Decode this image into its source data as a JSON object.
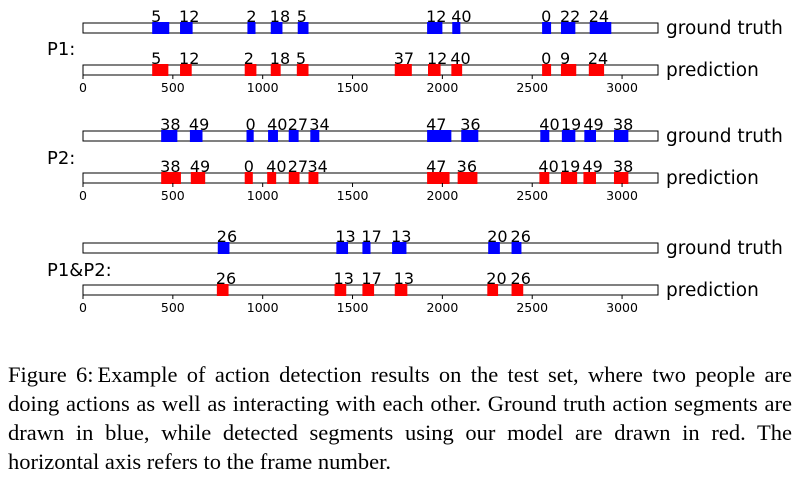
{
  "figure": {
    "caption_label": "Figure 6:",
    "caption_text": "Example of action detection results on the test set, where two people are doing actions as well as interacting with each other. Ground truth action segments are drawn in blue, while detected segments using our model are drawn in red. The horizontal axis refers to the frame number."
  },
  "colors": {
    "ground_truth": "#0000ff",
    "prediction": "#ff0000",
    "track": "#ffffff",
    "border": "#000000"
  },
  "chart_data": [
    {
      "type": "timeline",
      "title": "P1:",
      "xlim": [
        0,
        3200
      ],
      "xticks": [
        0,
        500,
        1000,
        1500,
        2000,
        2500,
        3000
      ],
      "tracks": [
        {
          "name": "ground truth",
          "color": "#0000ff",
          "segments": [
            {
              "start": 385,
              "end": 480,
              "label": "5"
            },
            {
              "start": 540,
              "end": 610,
              "label": "12"
            },
            {
              "start": 915,
              "end": 960,
              "label": "2"
            },
            {
              "start": 1045,
              "end": 1110,
              "label": "18"
            },
            {
              "start": 1195,
              "end": 1255,
              "label": "5"
            },
            {
              "start": 1915,
              "end": 2000,
              "label": "12"
            },
            {
              "start": 2055,
              "end": 2100,
              "label": "40"
            },
            {
              "start": 2555,
              "end": 2605,
              "label": "0"
            },
            {
              "start": 2660,
              "end": 2740,
              "label": "22"
            },
            {
              "start": 2820,
              "end": 2940,
              "label": "24"
            }
          ]
        },
        {
          "name": "prediction",
          "color": "#ff0000",
          "segments": [
            {
              "start": 385,
              "end": 475,
              "label": "5"
            },
            {
              "start": 540,
              "end": 605,
              "label": "12"
            },
            {
              "start": 900,
              "end": 965,
              "label": "2"
            },
            {
              "start": 1045,
              "end": 1100,
              "label": "18"
            },
            {
              "start": 1190,
              "end": 1255,
              "label": "5"
            },
            {
              "start": 1735,
              "end": 1830,
              "label": "37"
            },
            {
              "start": 1920,
              "end": 1990,
              "label": "12"
            },
            {
              "start": 2050,
              "end": 2110,
              "label": "40"
            },
            {
              "start": 2555,
              "end": 2605,
              "label": "0"
            },
            {
              "start": 2660,
              "end": 2745,
              "label": "9"
            },
            {
              "start": 2815,
              "end": 2900,
              "label": "24"
            }
          ]
        }
      ]
    },
    {
      "type": "timeline",
      "title": "P2:",
      "xlim": [
        0,
        3200
      ],
      "xticks": [
        0,
        500,
        1000,
        1500,
        2000,
        2500,
        3000
      ],
      "tracks": [
        {
          "name": "ground truth",
          "color": "#0000ff",
          "segments": [
            {
              "start": 435,
              "end": 525,
              "label": "38"
            },
            {
              "start": 595,
              "end": 665,
              "label": "49"
            },
            {
              "start": 910,
              "end": 950,
              "label": "0"
            },
            {
              "start": 1030,
              "end": 1085,
              "label": "40"
            },
            {
              "start": 1145,
              "end": 1200,
              "label": "27"
            },
            {
              "start": 1265,
              "end": 1315,
              "label": "34"
            },
            {
              "start": 1915,
              "end": 2050,
              "label": "47"
            },
            {
              "start": 2105,
              "end": 2200,
              "label": "36"
            },
            {
              "start": 2545,
              "end": 2595,
              "label": "40"
            },
            {
              "start": 2665,
              "end": 2740,
              "label": "19"
            },
            {
              "start": 2790,
              "end": 2855,
              "label": "49"
            },
            {
              "start": 2955,
              "end": 3035,
              "label": "38"
            }
          ]
        },
        {
          "name": "prediction",
          "color": "#ff0000",
          "segments": [
            {
              "start": 435,
              "end": 545,
              "label": "38"
            },
            {
              "start": 600,
              "end": 680,
              "label": "49"
            },
            {
              "start": 900,
              "end": 945,
              "label": "0"
            },
            {
              "start": 1025,
              "end": 1075,
              "label": "40"
            },
            {
              "start": 1145,
              "end": 1205,
              "label": "27"
            },
            {
              "start": 1255,
              "end": 1310,
              "label": "34"
            },
            {
              "start": 1915,
              "end": 2040,
              "label": "47"
            },
            {
              "start": 2085,
              "end": 2195,
              "label": "36"
            },
            {
              "start": 2540,
              "end": 2595,
              "label": "40"
            },
            {
              "start": 2660,
              "end": 2750,
              "label": "19"
            },
            {
              "start": 2785,
              "end": 2855,
              "label": "49"
            },
            {
              "start": 2955,
              "end": 3035,
              "label": "38"
            }
          ]
        }
      ]
    },
    {
      "type": "timeline",
      "title": "P1&P2:",
      "xlim": [
        0,
        3200
      ],
      "xticks": [
        0,
        500,
        1000,
        1500,
        2000,
        2500,
        3000
      ],
      "tracks": [
        {
          "name": "ground truth",
          "color": "#0000ff",
          "segments": [
            {
              "start": 750,
              "end": 815,
              "label": "26"
            },
            {
              "start": 1410,
              "end": 1475,
              "label": "13"
            },
            {
              "start": 1555,
              "end": 1600,
              "label": "17"
            },
            {
              "start": 1720,
              "end": 1800,
              "label": "13"
            },
            {
              "start": 2255,
              "end": 2320,
              "label": "20"
            },
            {
              "start": 2385,
              "end": 2440,
              "label": "26"
            }
          ]
        },
        {
          "name": "prediction",
          "color": "#ff0000",
          "segments": [
            {
              "start": 745,
              "end": 810,
              "label": "26"
            },
            {
              "start": 1400,
              "end": 1465,
              "label": "13"
            },
            {
              "start": 1555,
              "end": 1620,
              "label": "17"
            },
            {
              "start": 1735,
              "end": 1805,
              "label": "13"
            },
            {
              "start": 2250,
              "end": 2310,
              "label": "20"
            },
            {
              "start": 2385,
              "end": 2450,
              "label": "26"
            }
          ]
        }
      ]
    }
  ]
}
